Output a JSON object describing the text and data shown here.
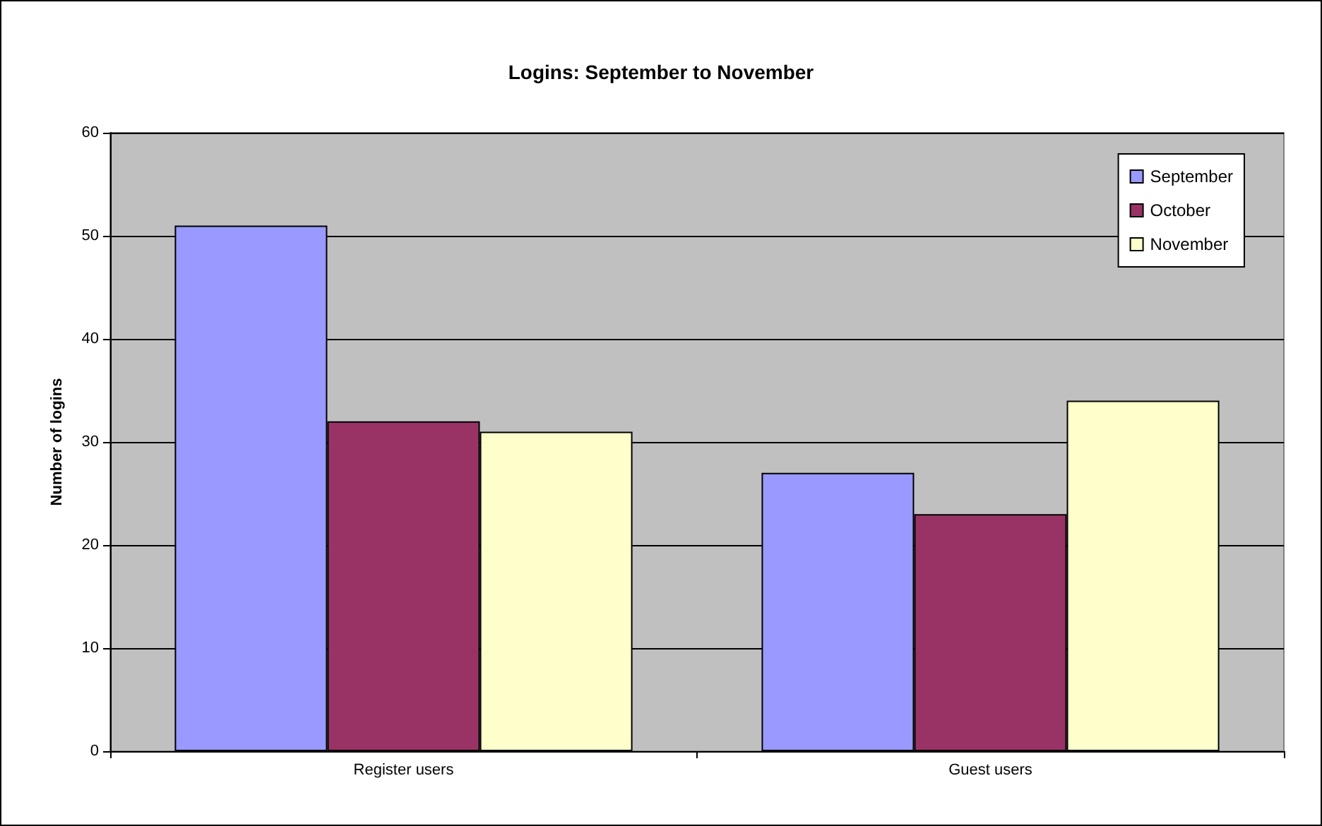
{
  "chart_data": {
    "type": "bar",
    "title": "Logins: September to November",
    "ylabel": "Number of logins",
    "categories": [
      "Register users",
      "Guest users"
    ],
    "series": [
      {
        "name": "September",
        "color": "#9999ff",
        "values": [
          51,
          27
        ]
      },
      {
        "name": "October",
        "color": "#993366",
        "values": [
          32,
          23
        ]
      },
      {
        "name": "November",
        "color": "#ffffcc",
        "values": [
          31,
          34
        ]
      }
    ],
    "ylim": [
      0,
      60
    ],
    "yticks": [
      0,
      10,
      20,
      30,
      40,
      50,
      60
    ],
    "grid": "y",
    "legend": "top right"
  }
}
